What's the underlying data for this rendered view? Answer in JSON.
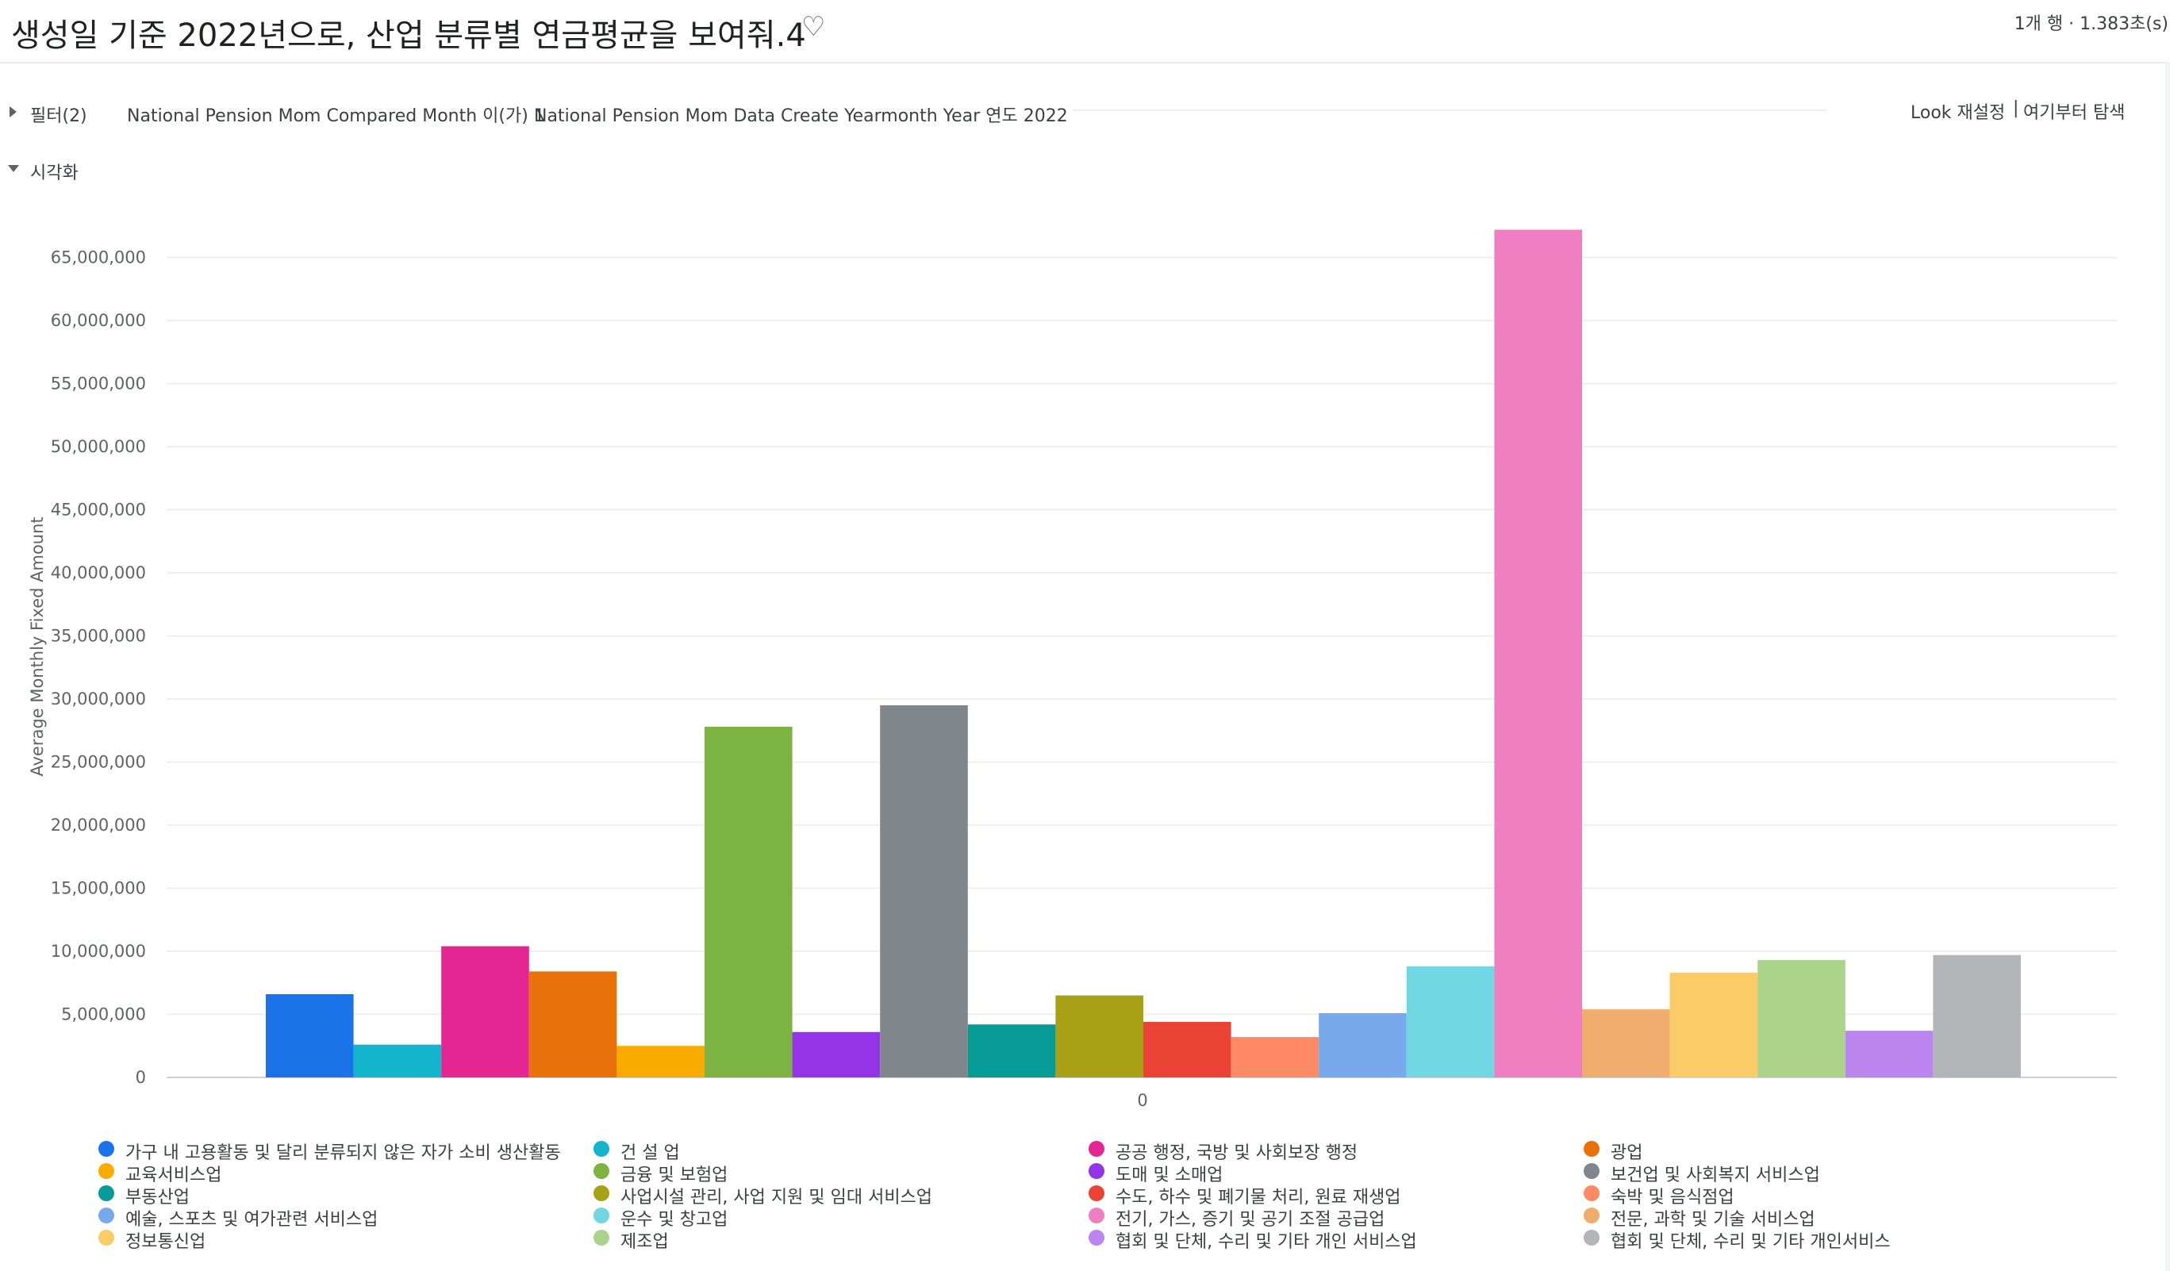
{
  "header": {
    "title": "생성일 기준 2022년으로, 산업 분류별 연금평균을 보여줘.4",
    "heart_icon": "heart-outline-icon",
    "meta": "1개 행 · 1.383초(s)"
  },
  "filters": {
    "label": "필터(2)",
    "items": [
      "National Pension Mom Compared Month 이(가) 1",
      "National Pension Mom Data Create Yearmonth Year 연도 2022"
    ],
    "look_reset": "Look 재설정",
    "separator": "|",
    "explore": "여기부터 탐색"
  },
  "visualization": {
    "label": "시각화"
  },
  "chart_data": {
    "type": "bar",
    "categories": [
      "0"
    ],
    "ylabel": "Average Monthly Fixed Amount",
    "xlabel": "",
    "ylim": [
      0,
      70000000
    ],
    "yticks": [
      0,
      5000000,
      10000000,
      15000000,
      20000000,
      25000000,
      30000000,
      35000000,
      40000000,
      45000000,
      50000000,
      55000000,
      60000000,
      65000000
    ],
    "ytick_labels": [
      "0",
      "5,000,000",
      "10,000,000",
      "15,000,000",
      "20,000,000",
      "25,000,000",
      "30,000,000",
      "35,000,000",
      "40,000,000",
      "45,000,000",
      "50,000,000",
      "55,000,000",
      "60,000,000",
      "65,000,000"
    ],
    "grid": true,
    "legend_position": "bottom",
    "series": [
      {
        "name": "가구 내 고용활동 및 달리 분류되지 않은 자가 소비 생산활동",
        "color": "#1a73e8",
        "values": [
          6600000
        ]
      },
      {
        "name": "건 설 업",
        "color": "#12b5cb",
        "values": [
          2600000
        ]
      },
      {
        "name": "공공 행정, 국방 및 사회보장 행정",
        "color": "#e52592",
        "values": [
          10400000
        ]
      },
      {
        "name": "광업",
        "color": "#e8710a",
        "values": [
          8400000
        ]
      },
      {
        "name": "교육서비스업",
        "color": "#f9ab00",
        "values": [
          2500000
        ]
      },
      {
        "name": "금융 및 보험업",
        "color": "#7cb342",
        "values": [
          27800000
        ]
      },
      {
        "name": "도매 및 소매업",
        "color": "#9334e6",
        "values": [
          3600000
        ]
      },
      {
        "name": "보건업 및 사회복지 서비스업",
        "color": "#80868b",
        "values": [
          29500000
        ]
      },
      {
        "name": "부동산업",
        "color": "#079c98",
        "values": [
          4200000
        ]
      },
      {
        "name": "사업시설 관리, 사업 지원 및 임대 서비스업",
        "color": "#a8a116",
        "values": [
          6500000
        ]
      },
      {
        "name": "수도, 하수 및 폐기물 처리, 원료 재생업",
        "color": "#ea4335",
        "values": [
          4400000
        ]
      },
      {
        "name": "숙박 및 음식점업",
        "color": "#ff8a65",
        "values": [
          3200000
        ]
      },
      {
        "name": "예술, 스포츠 및 여가관련 서비스업",
        "color": "#78a9ec",
        "values": [
          5100000
        ]
      },
      {
        "name": "운수 및 창고업",
        "color": "#70d6e2",
        "values": [
          8800000
        ]
      },
      {
        "name": "전기, 가스, 증기 및 공기 조절 공급업",
        "color": "#f07fc1",
        "values": [
          67200000
        ]
      },
      {
        "name": "전문, 과학 및 기술 서비스업",
        "color": "#f0ac6c",
        "values": [
          5400000
        ]
      },
      {
        "name": "정보통신업",
        "color": "#fbcb67",
        "values": [
          8300000
        ]
      },
      {
        "name": "제조업",
        "color": "#acd38a",
        "values": [
          9300000
        ]
      },
      {
        "name": "협회 및 단체, 수리 및 기타 개인 서비스업",
        "color": "#bd85f0",
        "values": [
          3700000
        ]
      },
      {
        "name": "협회 및 단체, 수리 및 기타 개인서비스",
        "color": "#b3b6b9",
        "values": [
          9700000
        ]
      }
    ]
  }
}
